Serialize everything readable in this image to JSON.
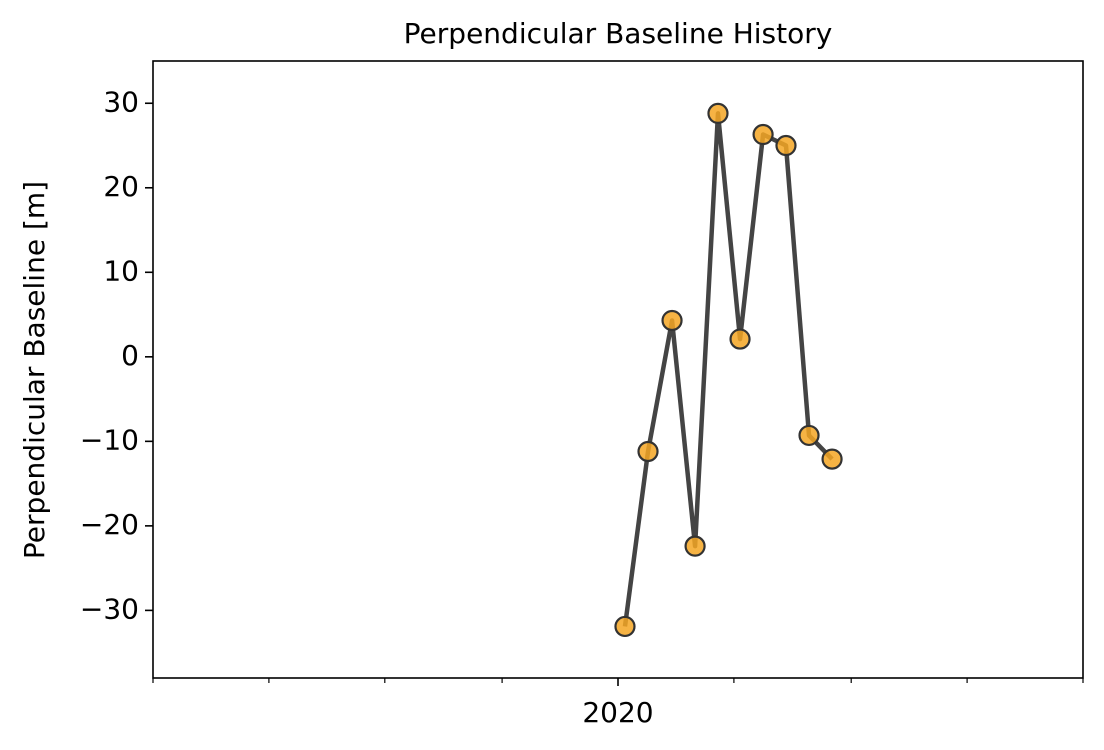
{
  "chart_data": {
    "type": "line",
    "title": "Perpendicular Baseline History",
    "ylabel": "Perpendicular Baseline [m]",
    "x": [
      2020.005,
      2020.0215,
      2020.0387,
      2020.0552,
      2020.0716,
      2020.0874,
      2020.1039,
      2020.1203,
      2020.1368,
      2020.1533
    ],
    "series": [
      {
        "values": [
          -31.9,
          -11.2,
          4.3,
          -22.4,
          28.8,
          2.1,
          26.3,
          25.0,
          -9.3,
          -12.1
        ],
        "color": "#444444",
        "marker_color": "#f5a623"
      }
    ],
    "xlim": [
      2019.667,
      2020.333
    ],
    "xticks": [
      2020
    ],
    "xminorticks": [
      2019.667,
      2019.75,
      2019.833,
      2019.917,
      2020.083,
      2020.167,
      2020.25,
      2020.333
    ],
    "ylim": [
      -38,
      35
    ],
    "yticks": [
      -30,
      -20,
      -10,
      0,
      10,
      20,
      30
    ],
    "grid": false
  }
}
